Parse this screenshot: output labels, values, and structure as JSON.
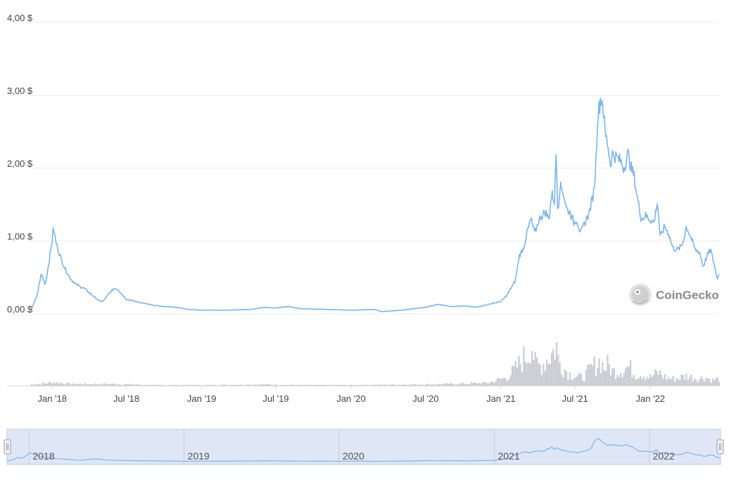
{
  "colors": {
    "price_line": "#7cb5ec",
    "volume_bars": "#c9ccd3",
    "grid": "#ececec",
    "navigator_fill": "#dfe6f5",
    "navigator_outline": "#c4cbe0",
    "watermark": "#8a8a8a"
  },
  "icons": {
    "watermark": "gecko-logo-icon",
    "navigator_handles": "grip-handle-icon"
  },
  "watermark": {
    "text": "CoinGecko"
  },
  "chart_data": {
    "type": "line",
    "xlabel": "",
    "ylabel": "",
    "x_range": [
      "2017-11-10",
      "2022-06-18"
    ],
    "ylim": [
      0,
      4
    ],
    "y_ticks": [
      0,
      1,
      2,
      3,
      4
    ],
    "y_tick_labels": [
      "0,00 $",
      "1,00 $",
      "2,00 $",
      "3,00 $",
      "4,00 $"
    ],
    "x_ticks": [
      {
        "date": "2018-01-01",
        "label": "Jan '18"
      },
      {
        "date": "2018-07-01",
        "label": "Jul '18"
      },
      {
        "date": "2019-01-01",
        "label": "Jan '19"
      },
      {
        "date": "2019-07-01",
        "label": "Jul '19"
      },
      {
        "date": "2020-01-01",
        "label": "Jan '20"
      },
      {
        "date": "2020-07-01",
        "label": "Jul '20"
      },
      {
        "date": "2021-01-01",
        "label": "Jan '21"
      },
      {
        "date": "2021-07-01",
        "label": "Jul '21"
      },
      {
        "date": "2022-01-01",
        "label": "Jan '22"
      }
    ],
    "grid": true,
    "legend": "none",
    "series": [
      {
        "kind": "price",
        "points": [
          [
            "2017-11-10",
            0.05
          ],
          [
            "2017-11-25",
            0.25
          ],
          [
            "2017-12-05",
            0.55
          ],
          [
            "2017-12-15",
            0.4
          ],
          [
            "2017-12-25",
            0.75
          ],
          [
            "2018-01-01",
            1.02
          ],
          [
            "2018-01-04",
            1.18
          ],
          [
            "2018-01-10",
            0.98
          ],
          [
            "2018-01-20",
            0.8
          ],
          [
            "2018-02-01",
            0.62
          ],
          [
            "2018-02-15",
            0.48
          ],
          [
            "2018-03-01",
            0.4
          ],
          [
            "2018-03-20",
            0.35
          ],
          [
            "2018-04-10",
            0.25
          ],
          [
            "2018-04-25",
            0.18
          ],
          [
            "2018-05-05",
            0.17
          ],
          [
            "2018-05-20",
            0.28
          ],
          [
            "2018-06-01",
            0.35
          ],
          [
            "2018-06-10",
            0.34
          ],
          [
            "2018-07-01",
            0.2
          ],
          [
            "2018-08-01",
            0.16
          ],
          [
            "2018-09-01",
            0.12
          ],
          [
            "2018-10-01",
            0.1
          ],
          [
            "2018-11-01",
            0.09
          ],
          [
            "2018-12-01",
            0.06
          ],
          [
            "2019-01-01",
            0.05
          ],
          [
            "2019-03-01",
            0.05
          ],
          [
            "2019-05-01",
            0.06
          ],
          [
            "2019-06-01",
            0.09
          ],
          [
            "2019-07-01",
            0.08
          ],
          [
            "2019-08-01",
            0.1
          ],
          [
            "2019-09-01",
            0.07
          ],
          [
            "2019-11-01",
            0.06
          ],
          [
            "2020-01-01",
            0.05
          ],
          [
            "2020-03-01",
            0.06
          ],
          [
            "2020-03-15",
            0.03
          ],
          [
            "2020-05-01",
            0.05
          ],
          [
            "2020-07-01",
            0.09
          ],
          [
            "2020-08-01",
            0.13
          ],
          [
            "2020-09-01",
            0.1
          ],
          [
            "2020-10-01",
            0.11
          ],
          [
            "2020-11-01",
            0.09
          ],
          [
            "2020-12-01",
            0.13
          ],
          [
            "2021-01-01",
            0.17
          ],
          [
            "2021-01-15",
            0.25
          ],
          [
            "2021-01-25",
            0.35
          ],
          [
            "2021-02-05",
            0.45
          ],
          [
            "2021-02-15",
            0.8
          ],
          [
            "2021-02-25",
            0.9
          ],
          [
            "2021-03-05",
            1.1
          ],
          [
            "2021-03-15",
            1.3
          ],
          [
            "2021-03-25",
            1.1
          ],
          [
            "2021-04-01",
            1.25
          ],
          [
            "2021-04-10",
            1.35
          ],
          [
            "2021-04-20",
            1.4
          ],
          [
            "2021-04-28",
            1.3
          ],
          [
            "2021-05-05",
            1.65
          ],
          [
            "2021-05-12",
            1.55
          ],
          [
            "2021-05-16",
            2.25
          ],
          [
            "2021-05-20",
            1.4
          ],
          [
            "2021-05-25",
            1.75
          ],
          [
            "2021-06-01",
            1.7
          ],
          [
            "2021-06-10",
            1.45
          ],
          [
            "2021-06-20",
            1.38
          ],
          [
            "2021-06-28",
            1.25
          ],
          [
            "2021-07-05",
            1.3
          ],
          [
            "2021-07-15",
            1.1
          ],
          [
            "2021-07-25",
            1.25
          ],
          [
            "2021-08-05",
            1.4
          ],
          [
            "2021-08-15",
            1.65
          ],
          [
            "2021-08-20",
            1.95
          ],
          [
            "2021-08-25",
            2.7
          ],
          [
            "2021-09-02",
            2.97
          ],
          [
            "2021-09-07",
            2.9
          ],
          [
            "2021-09-12",
            2.5
          ],
          [
            "2021-09-20",
            2.3
          ],
          [
            "2021-09-25",
            2.05
          ],
          [
            "2021-10-01",
            2.2
          ],
          [
            "2021-10-10",
            2.15
          ],
          [
            "2021-10-20",
            2.1
          ],
          [
            "2021-10-28",
            2.0
          ],
          [
            "2021-11-08",
            2.2
          ],
          [
            "2021-11-15",
            2.0
          ],
          [
            "2021-11-22",
            1.9
          ],
          [
            "2021-11-30",
            1.6
          ],
          [
            "2021-12-10",
            1.3
          ],
          [
            "2021-12-20",
            1.35
          ],
          [
            "2021-12-31",
            1.3
          ],
          [
            "2022-01-10",
            1.25
          ],
          [
            "2022-01-18",
            1.55
          ],
          [
            "2022-01-25",
            1.05
          ],
          [
            "2022-02-05",
            1.2
          ],
          [
            "2022-02-15",
            1.1
          ],
          [
            "2022-02-25",
            0.9
          ],
          [
            "2022-03-10",
            0.88
          ],
          [
            "2022-03-20",
            0.95
          ],
          [
            "2022-03-30",
            1.2
          ],
          [
            "2022-04-10",
            1.05
          ],
          [
            "2022-04-20",
            0.88
          ],
          [
            "2022-05-01",
            0.85
          ],
          [
            "2022-05-10",
            0.65
          ],
          [
            "2022-05-20",
            0.8
          ],
          [
            "2022-05-28",
            0.88
          ],
          [
            "2022-06-05",
            0.7
          ],
          [
            "2022-06-13",
            0.48
          ],
          [
            "2022-06-18",
            0.55
          ]
        ]
      },
      {
        "kind": "volume",
        "ylim": [
          0,
          1
        ],
        "points": [
          [
            "2017-11-10",
            0.02
          ],
          [
            "2017-12-15",
            0.04
          ],
          [
            "2018-01-04",
            0.06
          ],
          [
            "2018-02-15",
            0.03
          ],
          [
            "2018-06-01",
            0.03
          ],
          [
            "2018-09-01",
            0.01
          ],
          [
            "2019-01-01",
            0.01
          ],
          [
            "2019-06-01",
            0.02
          ],
          [
            "2019-09-01",
            0.01
          ],
          [
            "2020-01-01",
            0.01
          ],
          [
            "2020-06-01",
            0.02
          ],
          [
            "2020-09-01",
            0.03
          ],
          [
            "2020-12-01",
            0.05
          ],
          [
            "2021-01-15",
            0.15
          ],
          [
            "2021-02-05",
            0.3
          ],
          [
            "2021-02-20",
            0.45
          ],
          [
            "2021-03-01",
            0.52
          ],
          [
            "2021-03-10",
            0.6
          ],
          [
            "2021-03-15",
            0.88
          ],
          [
            "2021-03-25",
            0.4
          ],
          [
            "2021-04-05",
            0.35
          ],
          [
            "2021-04-20",
            0.45
          ],
          [
            "2021-05-01",
            0.55
          ],
          [
            "2021-05-10",
            0.62
          ],
          [
            "2021-05-16",
            0.78
          ],
          [
            "2021-05-20",
            0.48
          ],
          [
            "2021-06-01",
            0.35
          ],
          [
            "2021-06-15",
            0.22
          ],
          [
            "2021-07-01",
            0.18
          ],
          [
            "2021-07-20",
            0.14
          ],
          [
            "2021-08-05",
            0.28
          ],
          [
            "2021-08-20",
            0.38
          ],
          [
            "2021-09-01",
            0.45
          ],
          [
            "2021-09-10",
            0.32
          ],
          [
            "2021-09-20",
            0.38
          ],
          [
            "2021-10-01",
            0.25
          ],
          [
            "2021-10-20",
            0.28
          ],
          [
            "2021-11-10",
            0.34
          ],
          [
            "2021-11-25",
            0.2
          ],
          [
            "2021-12-10",
            0.22
          ],
          [
            "2022-01-01",
            0.15
          ],
          [
            "2022-01-20",
            0.24
          ],
          [
            "2022-02-10",
            0.14
          ],
          [
            "2022-03-01",
            0.12
          ],
          [
            "2022-04-01",
            0.18
          ],
          [
            "2022-05-01",
            0.12
          ],
          [
            "2022-05-12",
            0.16
          ],
          [
            "2022-06-01",
            0.1
          ],
          [
            "2022-06-18",
            0.12
          ]
        ]
      }
    ]
  },
  "navigator": {
    "labels": [
      "2018",
      "2019",
      "2020",
      "2021",
      "2022"
    ],
    "label_dates": [
      "2018-01-01",
      "2019-01-01",
      "2020-01-01",
      "2021-01-01",
      "2022-01-01"
    ],
    "selection": [
      "2017-11-10",
      "2022-06-18"
    ]
  }
}
